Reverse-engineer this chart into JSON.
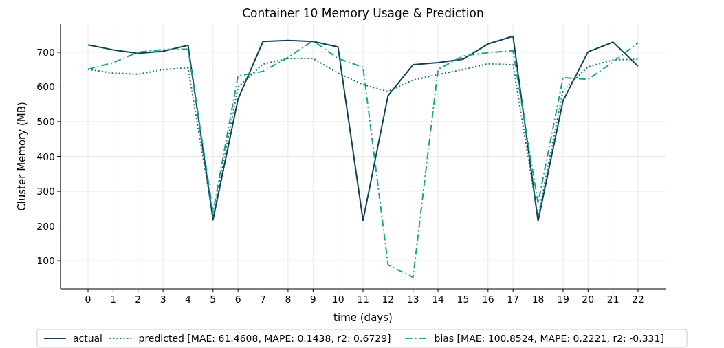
{
  "chart_data": {
    "type": "line",
    "title": "Container 10 Memory Usage & Prediction",
    "xlabel": "time (days)",
    "ylabel": "Cluster Memory (MB)",
    "x": [
      0,
      1,
      2,
      3,
      4,
      5,
      6,
      7,
      8,
      9,
      10,
      11,
      12,
      13,
      14,
      15,
      16,
      17,
      18,
      19,
      20,
      21,
      22
    ],
    "xlim": [
      -1.1,
      23.1
    ],
    "xticks": [
      0,
      1,
      2,
      3,
      4,
      5,
      6,
      7,
      8,
      9,
      10,
      11,
      12,
      13,
      14,
      15,
      16,
      17,
      18,
      19,
      20,
      21,
      22
    ],
    "ylim": [
      19,
      781
    ],
    "yticks": [
      100,
      200,
      300,
      400,
      500,
      600,
      700
    ],
    "grid": true,
    "legend": "bottom",
    "series": [
      {
        "name": "actual",
        "color": "#0e4155",
        "line_style": "solid",
        "values": [
          721,
          707,
          697,
          703,
          720,
          218,
          565,
          731,
          734,
          731,
          715,
          216,
          575,
          664,
          670,
          680,
          724,
          746,
          214,
          560,
          701,
          729,
          660
        ]
      },
      {
        "name": "predicted [MAE: 61.4608, MAPE: 0.1438, r2: 0.6729]",
        "color": "#1d6f8a",
        "line_style": "dotted",
        "values": [
          651,
          640,
          637,
          650,
          655,
          225,
          600,
          666,
          682,
          682,
          640,
          607,
          587,
          620,
          636,
          650,
          667,
          664,
          225,
          590,
          658,
          678,
          680
        ]
      },
      {
        "name": "bias [MAE: 100.8524, MAPE: 0.2221, r2: -0.331]",
        "color": "#17a589",
        "line_style": "dashdot",
        "values": [
          651,
          670,
          700,
          708,
          709,
          240,
          632,
          645,
          685,
          733,
          682,
          657,
          88,
          52,
          651,
          689,
          699,
          704,
          265,
          627,
          622,
          672,
          727
        ]
      }
    ]
  }
}
